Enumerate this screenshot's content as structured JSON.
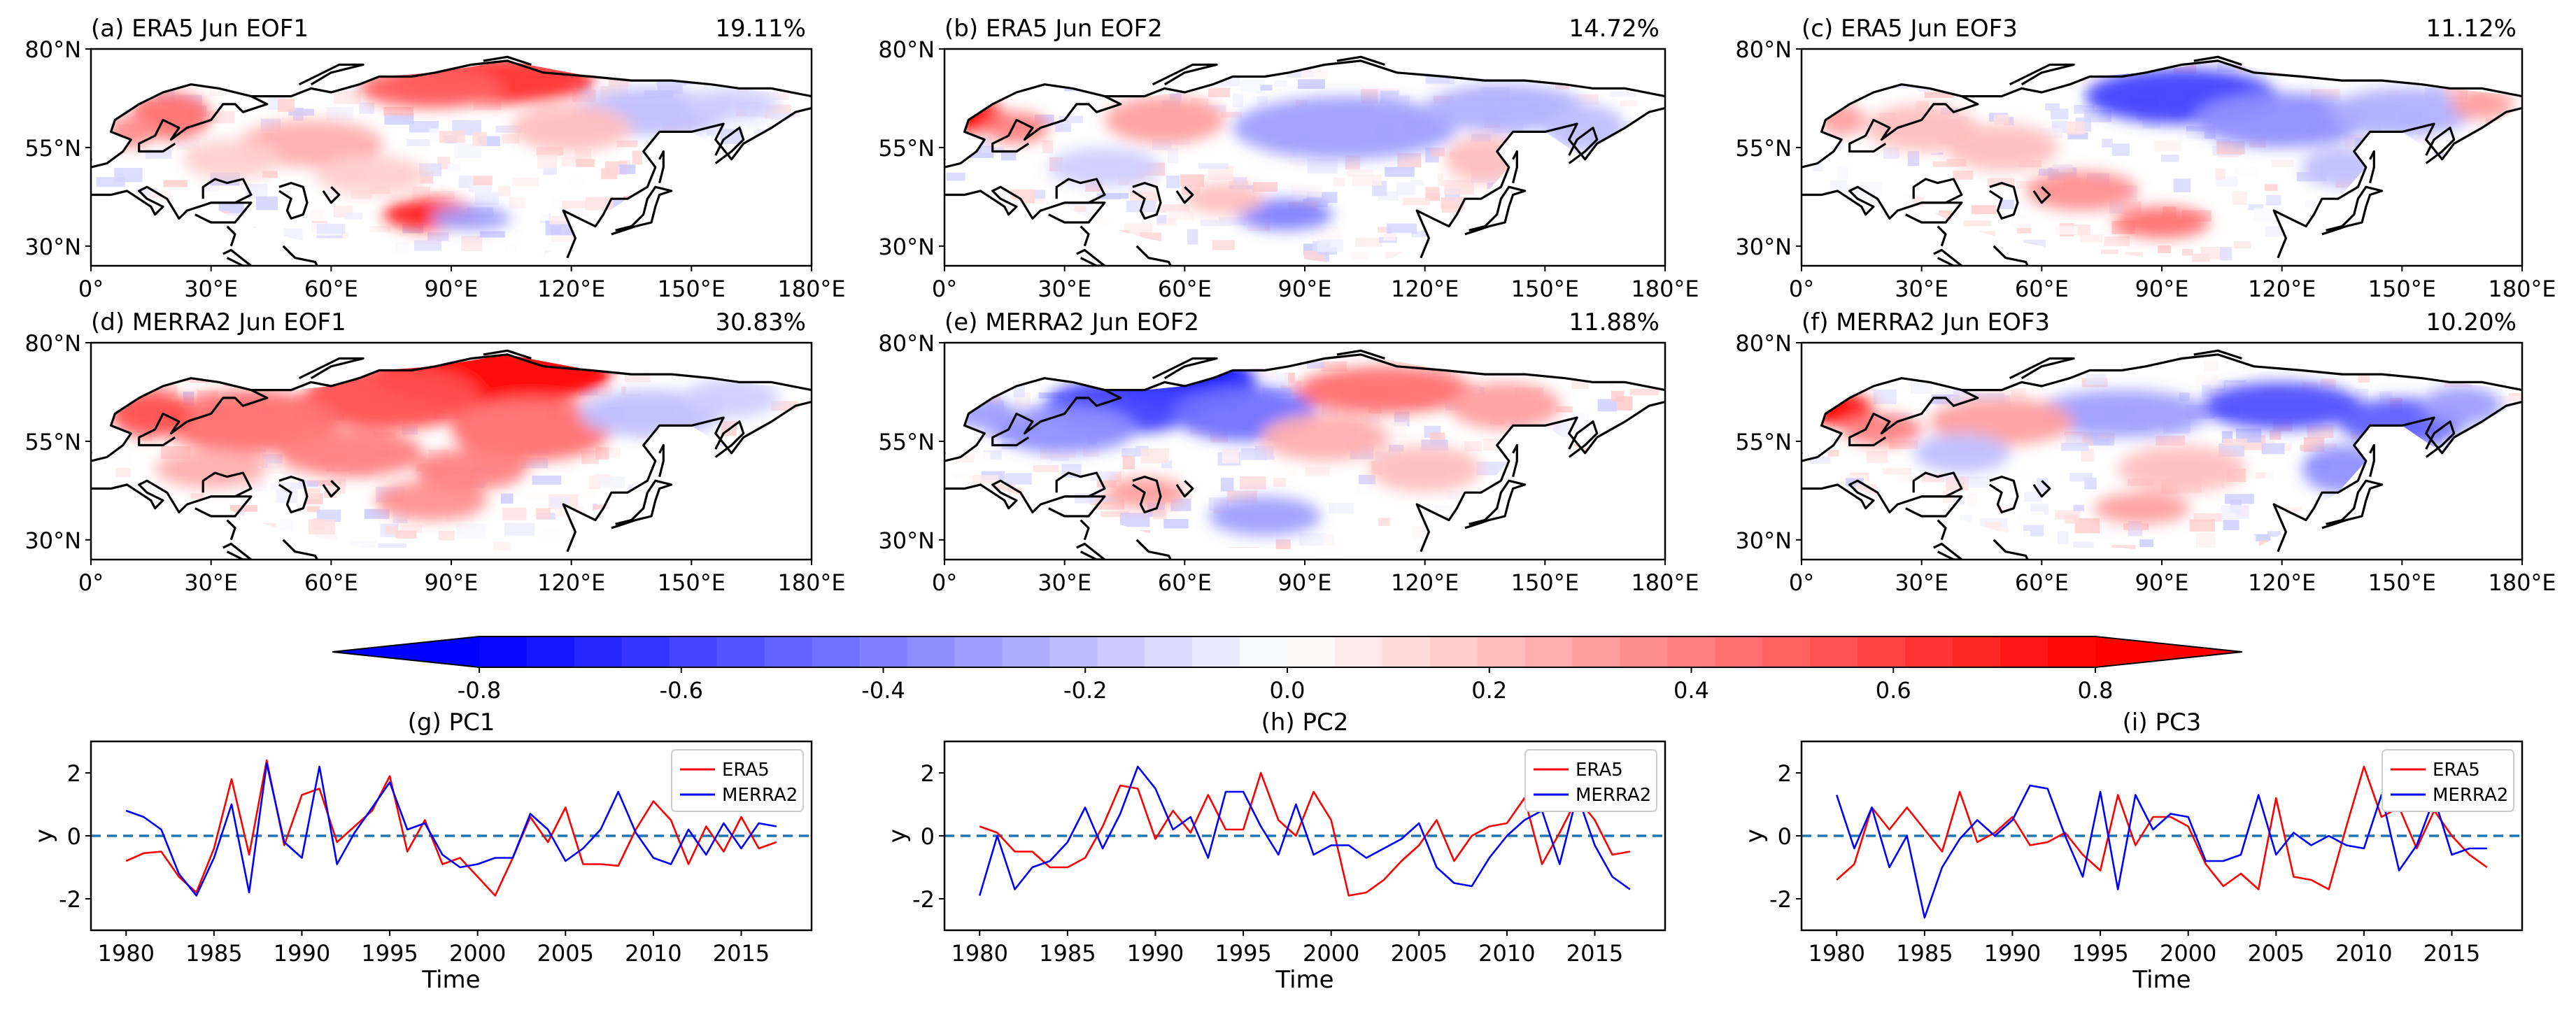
{
  "colors": {
    "positive": "#ff0000",
    "negative": "#0000ff",
    "land": "#ffffff",
    "zero_line": "#1f77b4",
    "coast": "#000000"
  },
  "maps": [
    {
      "label": "(a) ERA5 Jun EOF1",
      "variance": "19.11%",
      "pattern": "era5_eof1"
    },
    {
      "label": "(b) ERA5 Jun EOF2",
      "variance": "14.72%",
      "pattern": "era5_eof2"
    },
    {
      "label": "(c) ERA5 Jun EOF3",
      "variance": "11.12%",
      "pattern": "era5_eof3"
    },
    {
      "label": "(d) MERRA2 Jun EOF1",
      "variance": "30.83%",
      "pattern": "merra2_eof1"
    },
    {
      "label": "(e) MERRA2 Jun EOF2",
      "variance": "11.88%",
      "pattern": "merra2_eof2"
    },
    {
      "label": "(f) MERRA2 Jun EOF3",
      "variance": "10.20%",
      "pattern": "merra2_eof3"
    }
  ],
  "map_axes": {
    "lon_ticks": [
      "0°",
      "30°E",
      "60°E",
      "90°E",
      "120°E",
      "150°E",
      "180°E"
    ],
    "lon_values": [
      0,
      30,
      60,
      90,
      120,
      150,
      180
    ],
    "lat_ticks": [
      "80°N",
      "55°N",
      "30°N"
    ],
    "lat_values": [
      80,
      55,
      30
    ],
    "lon_range": [
      0,
      180
    ],
    "lat_range": [
      25,
      80
    ]
  },
  "colorbar": {
    "min": -0.8,
    "max": 0.8,
    "levels": 34,
    "extend": "both",
    "ticks": [
      "-0.8",
      "-0.6",
      "-0.4",
      "-0.2",
      "0.0",
      "0.2",
      "0.4",
      "0.6",
      "0.8"
    ],
    "tick_values": [
      -0.8,
      -0.6,
      -0.4,
      -0.2,
      0.0,
      0.2,
      0.4,
      0.6,
      0.8
    ]
  },
  "chart_data": [
    {
      "type": "line",
      "title": "(g) PC1",
      "xlabel": "Time",
      "ylabel": "y",
      "xlim": [
        1978,
        2019
      ],
      "ylim": [
        -3,
        3
      ],
      "xticks": [
        "1980",
        "1985",
        "1990",
        "1995",
        "2000",
        "2005",
        "2010",
        "2015"
      ],
      "yticks": [
        "2",
        "0",
        "-2"
      ],
      "legend_position": "top-right",
      "x": [
        1980,
        1981,
        1982,
        1983,
        1984,
        1985,
        1986,
        1987,
        1988,
        1989,
        1990,
        1991,
        1992,
        1993,
        1994,
        1995,
        1996,
        1997,
        1998,
        1999,
        2000,
        2001,
        2002,
        2003,
        2004,
        2005,
        2006,
        2007,
        2008,
        2009,
        2010,
        2011,
        2012,
        2013,
        2014,
        2015,
        2016,
        2017
      ],
      "series": [
        {
          "name": "ERA5",
          "color": "#ff0000",
          "values": [
            -0.8,
            -0.55,
            -0.5,
            -1.3,
            -1.8,
            -0.4,
            1.8,
            -0.6,
            2.4,
            -0.3,
            1.3,
            1.5,
            -0.2,
            0.3,
            0.8,
            1.9,
            -0.5,
            0.5,
            -0.9,
            -0.7,
            -1.3,
            -1.9,
            -0.7,
            0.6,
            -0.2,
            0.9,
            -0.9,
            -0.9,
            -0.95,
            0.2,
            1.1,
            0.5,
            -0.9,
            0.3,
            -0.5,
            0.6,
            -0.4,
            -0.2
          ]
        },
        {
          "name": "MERRA2",
          "color": "#0000ff",
          "values": [
            0.8,
            0.6,
            0.2,
            -1.2,
            -1.9,
            -0.7,
            1.0,
            -1.8,
            2.3,
            -0.2,
            -0.7,
            2.2,
            -0.9,
            0.1,
            0.9,
            1.7,
            0.2,
            0.4,
            -0.6,
            -1.0,
            -0.9,
            -0.7,
            -0.7,
            0.7,
            0.2,
            -0.8,
            -0.4,
            0.2,
            1.4,
            0.1,
            -0.7,
            -0.9,
            0.2,
            -0.6,
            0.4,
            -0.4,
            0.4,
            0.3
          ]
        }
      ]
    },
    {
      "type": "line",
      "title": "(h) PC2",
      "xlabel": "Time",
      "ylabel": "y",
      "xlim": [
        1978,
        2019
      ],
      "ylim": [
        -3,
        3
      ],
      "xticks": [
        "1980",
        "1985",
        "1990",
        "1995",
        "2000",
        "2005",
        "2010",
        "2015"
      ],
      "yticks": [
        "2",
        "0",
        "-2"
      ],
      "legend_position": "top-right",
      "x": [
        1980,
        1981,
        1982,
        1983,
        1984,
        1985,
        1986,
        1987,
        1988,
        1989,
        1990,
        1991,
        1992,
        1993,
        1994,
        1995,
        1996,
        1997,
        1998,
        1999,
        2000,
        2001,
        2002,
        2003,
        2004,
        2005,
        2006,
        2007,
        2008,
        2009,
        2010,
        2011,
        2012,
        2013,
        2014,
        2015,
        2016,
        2017
      ],
      "series": [
        {
          "name": "ERA5",
          "color": "#ff0000",
          "values": [
            0.3,
            0.1,
            -0.5,
            -0.5,
            -1.0,
            -1.0,
            -0.7,
            0.3,
            1.6,
            1.5,
            -0.1,
            0.8,
            0.1,
            1.3,
            0.2,
            0.2,
            2.0,
            0.5,
            0.0,
            1.4,
            0.5,
            -1.9,
            -1.8,
            -1.4,
            -0.8,
            -0.3,
            0.5,
            -0.8,
            0.0,
            0.3,
            0.4,
            1.2,
            -0.9,
            0.1,
            1.2,
            0.5,
            -0.6,
            -0.5
          ]
        },
        {
          "name": "MERRA2",
          "color": "#0000ff",
          "values": [
            -1.9,
            0.0,
            -1.7,
            -1.0,
            -0.8,
            -0.2,
            0.9,
            -0.4,
            0.7,
            2.2,
            1.5,
            0.2,
            0.6,
            -0.7,
            1.4,
            1.4,
            0.3,
            -0.6,
            1.0,
            -0.6,
            -0.3,
            -0.3,
            -0.7,
            -0.4,
            -0.1,
            0.4,
            -1.0,
            -1.5,
            -1.6,
            -0.7,
            0.0,
            0.5,
            0.8,
            -0.9,
            1.3,
            -0.3,
            -1.3,
            -1.7
          ]
        }
      ]
    },
    {
      "type": "line",
      "title": "(i) PC3",
      "xlabel": "Time",
      "ylabel": "y",
      "xlim": [
        1978,
        2019
      ],
      "ylim": [
        -3,
        3
      ],
      "xticks": [
        "1980",
        "1985",
        "1990",
        "1995",
        "2000",
        "2005",
        "2010",
        "2015"
      ],
      "yticks": [
        "2",
        "0",
        "-2"
      ],
      "legend_position": "top-right",
      "x": [
        1980,
        1981,
        1982,
        1983,
        1984,
        1985,
        1986,
        1987,
        1988,
        1989,
        1990,
        1991,
        1992,
        1993,
        1994,
        1995,
        1996,
        1997,
        1998,
        1999,
        2000,
        2001,
        2002,
        2003,
        2004,
        2005,
        2006,
        2007,
        2008,
        2009,
        2010,
        2011,
        2012,
        2013,
        2014,
        2015,
        2016,
        2017
      ],
      "series": [
        {
          "name": "ERA5",
          "color": "#ff0000",
          "values": [
            -1.4,
            -0.9,
            0.9,
            0.2,
            0.9,
            0.2,
            -0.5,
            1.4,
            -0.2,
            0.1,
            0.6,
            -0.3,
            -0.2,
            0.1,
            -0.6,
            -1.1,
            1.3,
            -0.3,
            0.6,
            0.6,
            0.3,
            -0.9,
            -1.6,
            -1.2,
            -1.7,
            1.2,
            -1.3,
            -1.4,
            -1.7,
            0.3,
            2.2,
            0.6,
            0.9,
            -0.4,
            0.8,
            0.0,
            -0.6,
            -1.0
          ]
        },
        {
          "name": "MERRA2",
          "color": "#0000ff",
          "values": [
            1.3,
            -0.4,
            0.9,
            -1.0,
            0.0,
            -2.6,
            -1.0,
            -0.1,
            0.5,
            0.0,
            0.5,
            1.6,
            1.5,
            0.0,
            -1.3,
            1.4,
            -1.7,
            1.3,
            0.2,
            0.7,
            0.6,
            -0.8,
            -0.8,
            -0.6,
            1.3,
            -0.6,
            0.1,
            -0.3,
            0.0,
            -0.3,
            -0.4,
            1.3,
            -1.1,
            -0.3,
            1.2,
            -0.6,
            -0.4,
            -0.4
          ]
        }
      ]
    }
  ]
}
